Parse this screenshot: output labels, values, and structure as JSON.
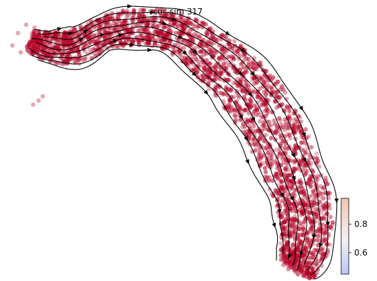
{
  "chart_data": {
    "type": "scatter",
    "title": "cos sim 317",
    "xlabel": "",
    "ylabel": "",
    "axes_visible": false,
    "grid": false,
    "marker_color": "#b40426",
    "stream_color": "#000000",
    "colorbar": {
      "colormap": "coolwarm",
      "range": [
        0.45,
        0.98
      ],
      "ticks": [
        0.6,
        0.8
      ],
      "tick_labels": [
        "0.6",
        "0.8"
      ],
      "low_color": "#b7c9f5",
      "mid_color": "#f2f2f2",
      "high_color": "#f0c6b2"
    }
  }
}
